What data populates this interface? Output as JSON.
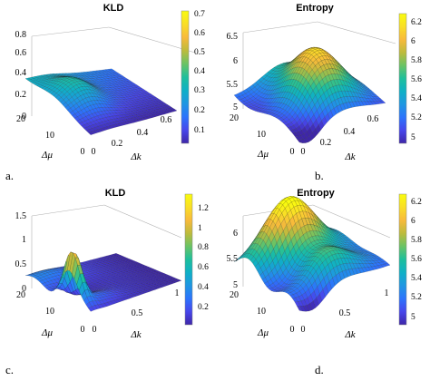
{
  "chart_data": [
    {
      "type": "surface",
      "panel": "a.",
      "title": "KLD",
      "xlabel": "Δk",
      "ylabel": "Δμ",
      "x_ticks": [
        "0",
        "0.2",
        "0.4",
        "0.6"
      ],
      "y_ticks": [
        "0",
        "10",
        "20"
      ],
      "z_ticks": [
        "0",
        "0.2",
        "0.4",
        "0.6",
        "0.8"
      ],
      "zlim": [
        0,
        0.8
      ],
      "colorbar": {
        "ticks": [
          "0.1",
          "0.2",
          "0.3",
          "0.4",
          "0.5",
          "0.6",
          "0.7"
        ],
        "range": [
          0.05,
          0.72
        ]
      },
      "features": {
        "ridge_peak": 0.5,
        "left_edge": 0.32,
        "right_edge": 0.2,
        "trough_min": 0.05
      }
    },
    {
      "type": "surface",
      "panel": "b.",
      "title": "Entropy",
      "xlabel": "Δk",
      "ylabel": "Δμ",
      "x_ticks": [
        "0",
        "0.2",
        "0.4",
        "0.6"
      ],
      "y_ticks": [
        "0",
        "10",
        "20"
      ],
      "z_ticks": [
        "5",
        "5.5",
        "6",
        "6.5"
      ],
      "zlim": [
        4.8,
        6.6
      ],
      "colorbar": {
        "ticks": [
          "5",
          "5.2",
          "5.4",
          "5.6",
          "5.8",
          "6",
          "6.2"
        ],
        "range": [
          4.9,
          6.35
        ]
      },
      "features": {
        "ridge_peak": 6.3,
        "left_edge": 5.2,
        "right_edge": 5.3,
        "trough_min": 4.9
      }
    },
    {
      "type": "surface",
      "panel": "c.",
      "title": "KLD",
      "xlabel": "Δk",
      "ylabel": "Δμ",
      "x_ticks": [
        "0",
        "0.5",
        "1"
      ],
      "y_ticks": [
        "0",
        "10",
        "20"
      ],
      "z_ticks": [
        "0",
        "0.5",
        "1",
        "1.5"
      ],
      "zlim": [
        0,
        1.5
      ],
      "colorbar": {
        "ticks": [
          "0.2",
          "0.4",
          "0.6",
          "0.8",
          "1",
          "1.2"
        ],
        "range": [
          0.05,
          1.35
        ]
      },
      "features": {
        "spike_peak": 1.3,
        "left_edge": 0.3,
        "right_edge": 0.1,
        "trough_min": 0.05
      }
    },
    {
      "type": "surface",
      "panel": "d.",
      "title": "Entropy",
      "xlabel": "Δk",
      "ylabel": "Δμ",
      "x_ticks": [
        "0",
        "0.5",
        "1"
      ],
      "y_ticks": [
        "0",
        "10",
        "20"
      ],
      "z_ticks": [
        "5",
        "5.5",
        "6"
      ],
      "zlim": [
        4.8,
        6.3
      ],
      "colorbar": {
        "ticks": [
          "5",
          "5.2",
          "5.4",
          "5.6",
          "5.8",
          "6",
          "6.2"
        ],
        "range": [
          4.9,
          6.3
        ]
      },
      "features": {
        "ridge_peak": 6.2,
        "left_edge": 5.3,
        "right_edge": 5.1,
        "trough_min": 4.9
      }
    }
  ],
  "colormap": [
    "#3e26a8",
    "#4746eb",
    "#2c73fc",
    "#1f96e2",
    "#0fb0c6",
    "#1ebf9c",
    "#6ac365",
    "#bdbb3c",
    "#f8ba3b",
    "#f9de27",
    "#f9fb0e"
  ]
}
